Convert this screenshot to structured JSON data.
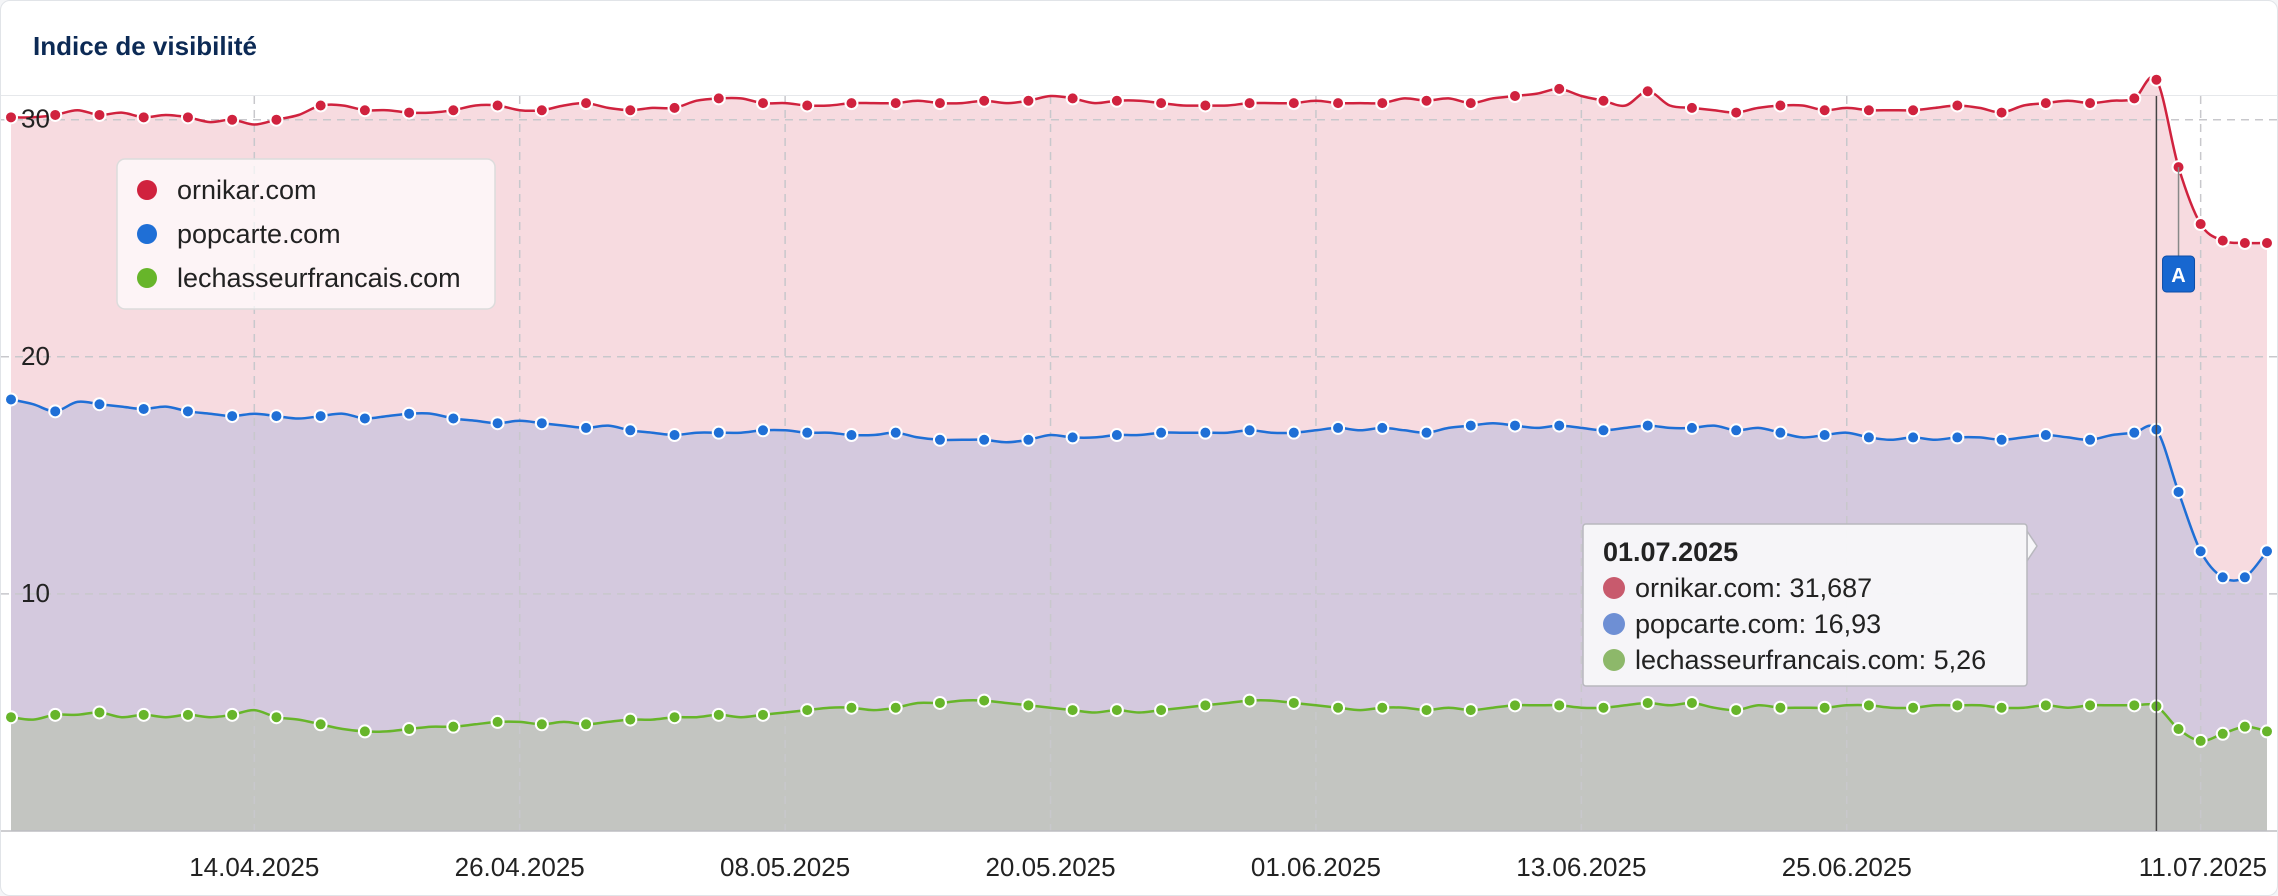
{
  "header": {
    "title": "Indice de visibilité"
  },
  "colors": {
    "ornikar": "#d0223e",
    "popcarte": "#1f6fd6",
    "lechasseur": "#67b52a",
    "ornikar_tooltip": "#c85a6d",
    "popcarte_tooltip": "#6e8fd4",
    "lechasseur_tooltip": "#8db86a",
    "annotation": "#1767d0"
  },
  "chart_data": {
    "type": "area",
    "x_start": "2025-04-03",
    "ylim": [
      0,
      31
    ],
    "ytick_values": [
      10,
      20,
      30
    ],
    "ytick_labels": [
      "10",
      "20",
      "30"
    ],
    "xtick_dates": [
      "2025-04-14",
      "2025-04-26",
      "2025-05-08",
      "2025-05-20",
      "2025-06-01",
      "2025-06-13",
      "2025-06-25",
      "2025-07-11"
    ],
    "xtick_labels": [
      "14.04.2025",
      "26.04.2025",
      "08.05.2025",
      "20.05.2025",
      "01.06.2025",
      "13.06.2025",
      "25.06.2025",
      "11.07.2025"
    ],
    "grid": true,
    "legend_position": "top-left",
    "series": [
      {
        "name": "ornikar.com",
        "color_key": "ornikar",
        "values": [
          30.1,
          30.1,
          30.2,
          30.4,
          30.2,
          30.3,
          30.1,
          30.2,
          30.1,
          29.9,
          30.0,
          29.8,
          30.0,
          30.2,
          30.6,
          30.6,
          30.4,
          30.4,
          30.3,
          30.3,
          30.4,
          30.6,
          30.6,
          30.4,
          30.4,
          30.6,
          30.7,
          30.5,
          30.4,
          30.5,
          30.5,
          30.8,
          30.9,
          30.9,
          30.7,
          30.7,
          30.6,
          30.6,
          30.7,
          30.7,
          30.7,
          30.8,
          30.7,
          30.7,
          30.8,
          30.7,
          30.8,
          31.0,
          30.9,
          30.7,
          30.8,
          30.8,
          30.7,
          30.6,
          30.6,
          30.6,
          30.7,
          30.7,
          30.7,
          30.8,
          30.7,
          30.7,
          30.7,
          30.9,
          30.8,
          30.9,
          30.7,
          30.9,
          31.0,
          31.1,
          31.3,
          31.0,
          30.8,
          30.6,
          31.2,
          30.6,
          30.5,
          30.4,
          30.3,
          30.5,
          30.6,
          30.6,
          30.4,
          30.5,
          30.4,
          30.4,
          30.4,
          30.5,
          30.6,
          30.5,
          30.3,
          30.6,
          30.7,
          30.8,
          30.7,
          30.8,
          30.9,
          31.687,
          28.0,
          25.6,
          24.9,
          24.8,
          24.8
        ]
      },
      {
        "name": "popcarte.com",
        "color_key": "popcarte",
        "values": [
          18.2,
          18.0,
          17.7,
          18.1,
          18.0,
          17.9,
          17.8,
          17.9,
          17.7,
          17.6,
          17.5,
          17.6,
          17.5,
          17.4,
          17.5,
          17.6,
          17.4,
          17.5,
          17.6,
          17.6,
          17.4,
          17.3,
          17.2,
          17.3,
          17.2,
          17.1,
          17.0,
          17.1,
          16.9,
          16.8,
          16.7,
          16.8,
          16.8,
          16.8,
          16.9,
          16.9,
          16.8,
          16.8,
          16.7,
          16.7,
          16.8,
          16.6,
          16.5,
          16.5,
          16.5,
          16.4,
          16.5,
          16.7,
          16.6,
          16.6,
          16.7,
          16.7,
          16.8,
          16.8,
          16.8,
          16.8,
          16.9,
          16.8,
          16.8,
          16.9,
          17.0,
          16.9,
          17.0,
          16.9,
          16.8,
          17.0,
          17.1,
          17.2,
          17.1,
          17.0,
          17.1,
          17.0,
          16.9,
          17.0,
          17.1,
          17.0,
          17.0,
          17.1,
          16.9,
          17.0,
          16.8,
          16.6,
          16.7,
          16.8,
          16.6,
          16.5,
          16.6,
          16.5,
          16.6,
          16.6,
          16.5,
          16.6,
          16.7,
          16.6,
          16.5,
          16.7,
          16.8,
          16.93,
          14.3,
          11.8,
          10.7,
          10.7,
          11.8
        ]
      },
      {
        "name": "lechasseurfrancais.com",
        "color_key": "lechasseur",
        "values": [
          4.8,
          4.7,
          4.9,
          4.9,
          5.0,
          4.8,
          4.9,
          4.8,
          4.9,
          4.8,
          4.9,
          5.1,
          4.8,
          4.7,
          4.5,
          4.3,
          4.2,
          4.2,
          4.3,
          4.4,
          4.4,
          4.5,
          4.6,
          4.6,
          4.5,
          4.6,
          4.5,
          4.6,
          4.7,
          4.7,
          4.8,
          4.8,
          4.9,
          4.8,
          4.9,
          5.0,
          5.1,
          5.2,
          5.2,
          5.1,
          5.2,
          5.4,
          5.4,
          5.5,
          5.5,
          5.4,
          5.3,
          5.2,
          5.1,
          5.0,
          5.1,
          5.0,
          5.1,
          5.2,
          5.3,
          5.4,
          5.5,
          5.5,
          5.4,
          5.3,
          5.2,
          5.1,
          5.2,
          5.2,
          5.1,
          5.2,
          5.1,
          5.2,
          5.3,
          5.3,
          5.3,
          5.2,
          5.2,
          5.3,
          5.4,
          5.3,
          5.4,
          5.2,
          5.1,
          5.3,
          5.2,
          5.2,
          5.2,
          5.3,
          5.3,
          5.2,
          5.2,
          5.3,
          5.3,
          5.3,
          5.2,
          5.2,
          5.3,
          5.2,
          5.3,
          5.3,
          5.3,
          5.26,
          4.3,
          3.8,
          4.1,
          4.4,
          4.2
        ]
      }
    ],
    "tooltip": {
      "date": "01.07.2025",
      "index": 97,
      "lines": [
        "ornikar.com: 31,687",
        "popcarte.com: 16,93",
        "lechasseurfrancais.com: 5,26"
      ]
    },
    "annotation": {
      "label": "A",
      "index": 98
    }
  }
}
